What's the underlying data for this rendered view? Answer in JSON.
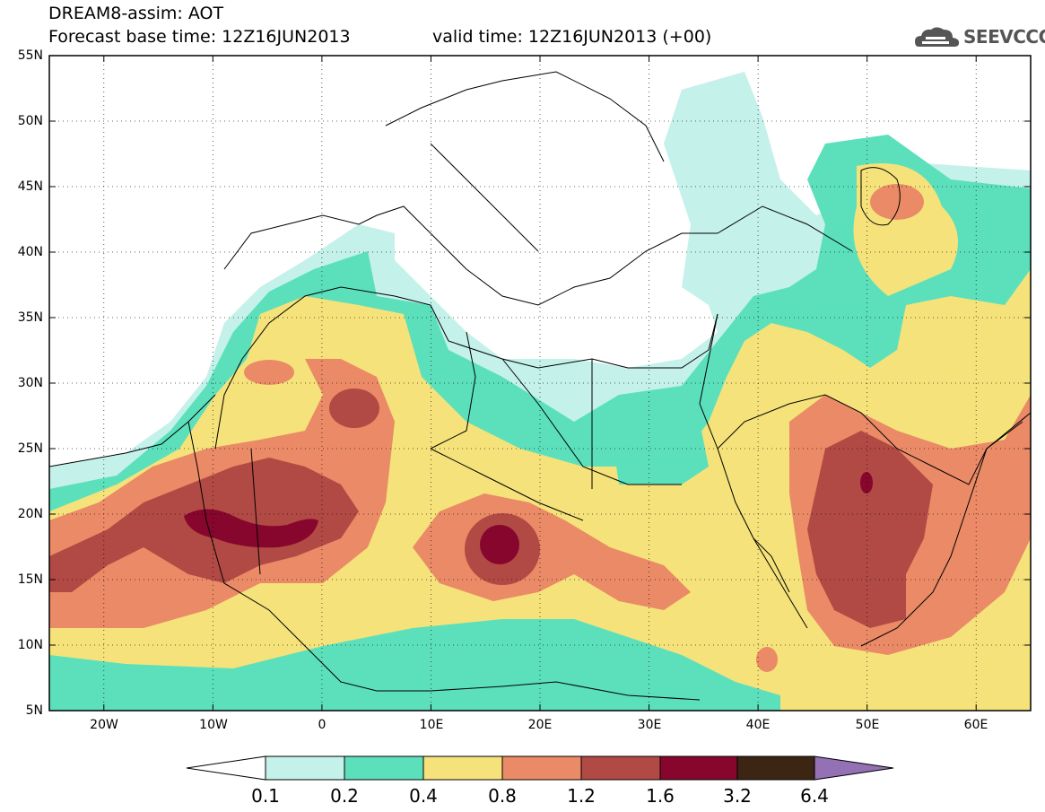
{
  "title": {
    "line1": "DREAM8-assim: AOT",
    "line2": "Forecast base time: 12Z16JUN2013",
    "valid": "valid time: 12Z16JUN2013 (+00)"
  },
  "logo": {
    "text": "SEEVCCC",
    "icon": "cloud-icon"
  },
  "axes": {
    "lat_labels": [
      "55N",
      "50N",
      "45N",
      "40N",
      "35N",
      "30N",
      "25N",
      "20N",
      "15N",
      "10N",
      "5N"
    ],
    "lon_labels": [
      "20W",
      "10W",
      "0",
      "10E",
      "20E",
      "30E",
      "40E",
      "50E",
      "60E"
    ],
    "lat_range": [
      5,
      55
    ],
    "lon_range": [
      -25,
      65
    ]
  },
  "legend": {
    "levels": [
      "0.1",
      "0.2",
      "0.4",
      "0.8",
      "1.2",
      "1.6",
      "3.2",
      "6.4"
    ],
    "colors": [
      "#ffffff",
      "#c4f1ea",
      "#5ce0bc",
      "#f5e27a",
      "#ea8a66",
      "#b14a44",
      "#87062e",
      "#3d2513",
      "#9470b4"
    ]
  },
  "chart_data": {
    "type": "heatmap",
    "title": "DREAM8-assim: AOT",
    "variable": "AOT",
    "base_time": "12Z16JUN2013",
    "valid_time": "12Z16JUN2013 (+00)",
    "lat_range": [
      5,
      55
    ],
    "lon_range": [
      -25,
      65
    ],
    "levels": [
      0.1,
      0.2,
      0.4,
      0.8,
      1.2,
      1.6,
      3.2,
      6.4
    ]
  }
}
